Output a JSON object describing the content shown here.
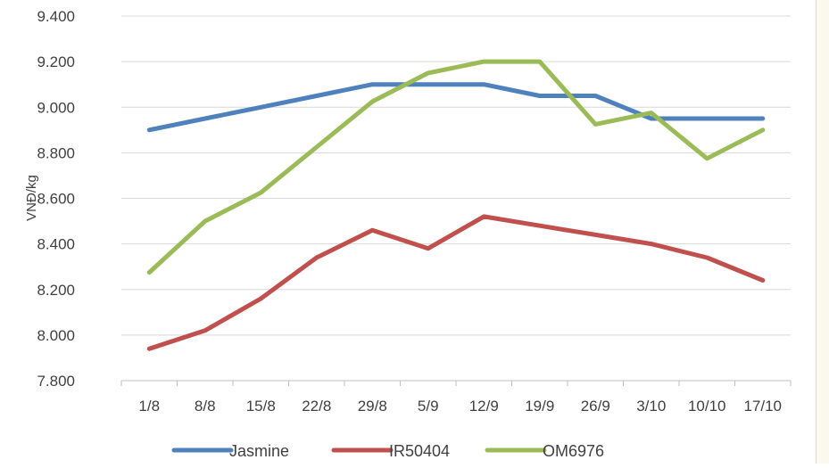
{
  "chart_data": {
    "type": "line",
    "title": "",
    "xlabel": "",
    "ylabel": "VNĐ/kg",
    "categories": [
      "1/8",
      "8/8",
      "15/8",
      "22/8",
      "29/8",
      "5/9",
      "12/9",
      "19/9",
      "26/9",
      "3/10",
      "10/10",
      "17/10"
    ],
    "ylim": [
      7800,
      9400
    ],
    "yticks": [
      7800,
      8000,
      8200,
      8400,
      8600,
      8800,
      9000,
      9200,
      9400
    ],
    "ytick_labels": [
      "7.800",
      "8.000",
      "8.200",
      "8.400",
      "8.600",
      "8.800",
      "9.000",
      "9.200",
      "9.400"
    ],
    "grid": true,
    "legend_position": "bottom",
    "series": [
      {
        "name": "Jasmine",
        "color": "#4f81bd",
        "values": [
          8900,
          8950,
          9000,
          9050,
          9100,
          9100,
          9100,
          9050,
          9050,
          8950,
          8950,
          8950
        ]
      },
      {
        "name": "IR50404",
        "color": "#c0504d",
        "values": [
          7940,
          8020,
          8160,
          8340,
          8460,
          8380,
          8520,
          8480,
          8440,
          8400,
          8340,
          8240
        ]
      },
      {
        "name": "OM6976",
        "color": "#9bbb59",
        "values": [
          8275,
          8500,
          8625,
          8825,
          9025,
          9150,
          9200,
          9200,
          8925,
          8975,
          8775,
          8900
        ]
      }
    ]
  }
}
